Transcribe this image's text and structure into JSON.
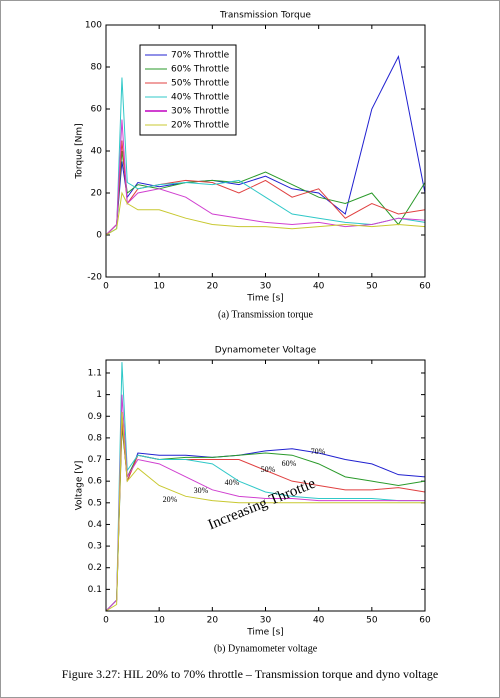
{
  "chart_data": [
    {
      "type": "line",
      "title": "Transmission Torque",
      "xlabel": "Time [s]",
      "ylabel": "Torque [Nm]",
      "caption": "(a) Transmission torque",
      "x": [
        0,
        2,
        3,
        4,
        6,
        10,
        15,
        20,
        25,
        30,
        35,
        40,
        45,
        50,
        55,
        60
      ],
      "xlim": [
        0,
        60
      ],
      "xticks": [
        0,
        10,
        20,
        30,
        40,
        50,
        60
      ],
      "ylim": [
        -20,
        100
      ],
      "yticks": [
        -20,
        0,
        20,
        40,
        60,
        80,
        100
      ],
      "legend": "upper left",
      "series": [
        {
          "name": "70% Throttle",
          "color": "#2020d0",
          "values": [
            0,
            5,
            35,
            18,
            25,
            23,
            25,
            26,
            24,
            28,
            22,
            20,
            10,
            60,
            85,
            20
          ]
        },
        {
          "name": "60% Throttle",
          "color": "#2a9a2a",
          "values": [
            0,
            5,
            40,
            20,
            24,
            22,
            25,
            26,
            25,
            30,
            24,
            18,
            15,
            20,
            5,
            25
          ]
        },
        {
          "name": "50% Throttle",
          "color": "#e04040",
          "values": [
            0,
            5,
            45,
            15,
            22,
            24,
            26,
            25,
            20,
            26,
            18,
            22,
            8,
            15,
            10,
            12
          ]
        },
        {
          "name": "40% Throttle",
          "color": "#30c8c8",
          "values": [
            0,
            3,
            75,
            25,
            22,
            24,
            25,
            24,
            26,
            18,
            10,
            8,
            6,
            5,
            8,
            6
          ]
        },
        {
          "name": "30% Throttle",
          "color": "#d040d0",
          "values": [
            0,
            5,
            55,
            15,
            20,
            22,
            18,
            10,
            8,
            6,
            5,
            6,
            4,
            5,
            8,
            7
          ]
        },
        {
          "name": "20% Throttle",
          "color": "#c8c830",
          "values": [
            0,
            3,
            20,
            15,
            12,
            12,
            8,
            5,
            4,
            4,
            3,
            4,
            5,
            4,
            5,
            4
          ]
        }
      ]
    },
    {
      "type": "line",
      "title": "Dynamometer Voltage",
      "xlabel": "Time [s]",
      "ylabel": "Voltage [V]",
      "caption": "(b) Dynamometer voltage",
      "x": [
        0,
        2,
        3,
        4,
        6,
        10,
        15,
        20,
        25,
        30,
        35,
        40,
        45,
        50,
        55,
        60
      ],
      "xlim": [
        0,
        60
      ],
      "xticks": [
        0,
        10,
        20,
        30,
        40,
        50,
        60
      ],
      "ylim": [
        0,
        1.16
      ],
      "yticks": [
        0.1,
        0.2,
        0.3,
        0.4,
        0.5,
        0.6,
        0.7,
        0.8,
        0.9,
        1,
        1.1
      ],
      "annotations": [
        "70%",
        "60%",
        "50%",
        "40%",
        "30%",
        "20%",
        "Increasing Throttle"
      ],
      "series": [
        {
          "color": "#2020d0",
          "values": [
            0,
            0.05,
            0.9,
            0.6,
            0.73,
            0.72,
            0.72,
            0.71,
            0.72,
            0.74,
            0.75,
            0.73,
            0.7,
            0.68,
            0.63,
            0.62
          ]
        },
        {
          "color": "#2a9a2a",
          "values": [
            0,
            0.05,
            0.85,
            0.62,
            0.72,
            0.7,
            0.71,
            0.71,
            0.72,
            0.73,
            0.72,
            0.68,
            0.62,
            0.6,
            0.58,
            0.6
          ]
        },
        {
          "color": "#e04040",
          "values": [
            0,
            0.05,
            0.88,
            0.6,
            0.72,
            0.7,
            0.7,
            0.7,
            0.7,
            0.65,
            0.6,
            0.58,
            0.56,
            0.56,
            0.57,
            0.55
          ]
        },
        {
          "color": "#30c8c8",
          "values": [
            0,
            0.05,
            1.15,
            0.65,
            0.72,
            0.7,
            0.7,
            0.68,
            0.6,
            0.55,
            0.53,
            0.52,
            0.52,
            0.52,
            0.51,
            0.51
          ]
        },
        {
          "color": "#d040d0",
          "values": [
            0,
            0.05,
            1.0,
            0.62,
            0.7,
            0.68,
            0.62,
            0.56,
            0.53,
            0.52,
            0.52,
            0.51,
            0.51,
            0.51,
            0.51,
            0.51
          ]
        },
        {
          "color": "#c8c830",
          "values": [
            0,
            0.03,
            0.92,
            0.6,
            0.66,
            0.58,
            0.53,
            0.51,
            0.5,
            0.5,
            0.5,
            0.5,
            0.5,
            0.5,
            0.5,
            0.5
          ]
        }
      ]
    }
  ],
  "caption": "Figure 3.27: HIL 20% to 70% throttle – Transmission torque and dyno voltage"
}
